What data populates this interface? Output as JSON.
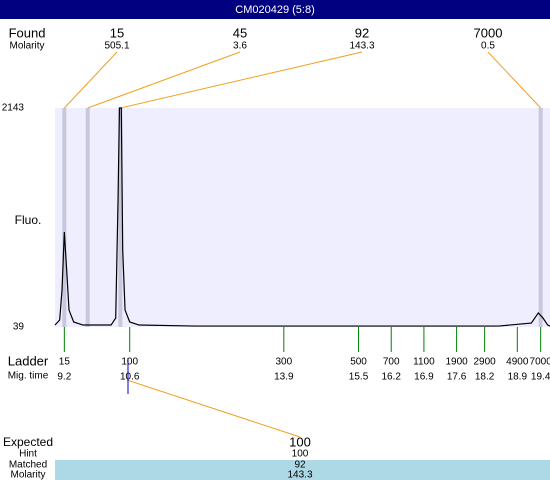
{
  "header": {
    "title": "CM020429 (5:8)"
  },
  "found": {
    "label": "Found",
    "molarity_label": "Molarity",
    "peaks": [
      {
        "size": 15,
        "molarity": 505.1,
        "time": 9.2
      },
      {
        "size": 45,
        "molarity": 3.6,
        "time": 9.7
      },
      {
        "size": 92,
        "molarity": 143.3,
        "time": 10.4
      },
      {
        "size": 7000,
        "molarity": 0.5,
        "time": 19.4
      }
    ]
  },
  "chart_data": {
    "type": "line",
    "ylabel": "Fluo.",
    "color": "#000000",
    "x": [
      9.0,
      9.1,
      9.15,
      9.2,
      9.25,
      9.3,
      9.4,
      9.6,
      10.0,
      10.2,
      10.3,
      10.35,
      10.38,
      10.42,
      10.45,
      10.5,
      10.6,
      10.8,
      12.0,
      15.0,
      18.5,
      19.2,
      19.35,
      19.45,
      19.55,
      19.6
    ],
    "values": [
      58,
      106,
      394,
      951,
      586,
      202,
      87,
      58,
      58,
      58,
      125,
      1258,
      2143,
      2143,
      778,
      202,
      87,
      58,
      48,
      48,
      48,
      77,
      174,
      125,
      58,
      48
    ],
    "xlim": [
      9.0,
      19.6
    ],
    "ylim": [
      39,
      2143
    ],
    "yticks": [
      39,
      2143
    ]
  },
  "ladder": {
    "label": "Ladder",
    "time_label": "Mig. time",
    "sizes": [
      15,
      100,
      300,
      500,
      700,
      1100,
      1900,
      2900,
      4900,
      7000
    ],
    "times": [
      9.2,
      10.6,
      13.9,
      15.5,
      16.2,
      16.9,
      17.6,
      18.2,
      18.9,
      19.4
    ]
  },
  "expected": {
    "label": "Expected",
    "value": 100,
    "hint_label": "Hint",
    "hint": 100,
    "matched_label": "Matched",
    "matched": 92,
    "molarity_label": "Molarity",
    "molarity": 143.3
  }
}
